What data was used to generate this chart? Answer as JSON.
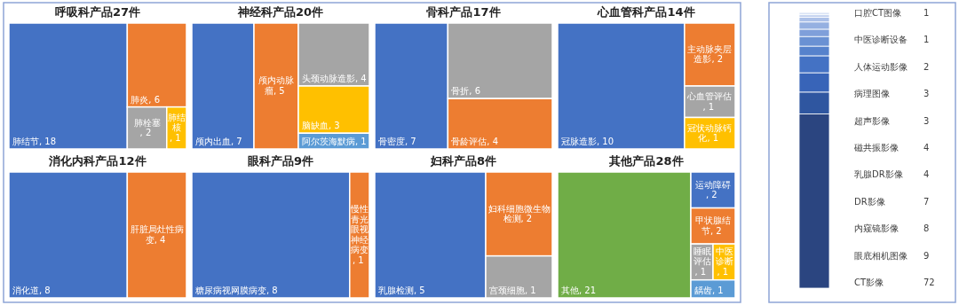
{
  "chart_data": [
    {
      "type": "other",
      "title": "呼吸科产品27件",
      "categories": [
        "肺结节",
        "肺炎",
        "肺栓塞",
        "肺结核"
      ],
      "values": [
        18,
        6,
        2,
        1
      ],
      "value_labels": [
        ", 18",
        ", 6",
        ", 2",
        ", 1"
      ],
      "colors": [
        "#4472c4",
        "#ed7d31",
        "#a5a5a5",
        "#ffc000"
      ]
    },
    {
      "type": "other",
      "title": "神经科产品20件",
      "categories": [
        "颅内出血",
        "颅内动脉瘤",
        "头颈动脉造影",
        "脑缺血",
        "阿尔茨海默病"
      ],
      "values": [
        7,
        5,
        4,
        3,
        1
      ],
      "value_labels": [
        ", 7",
        ", 5",
        ", 4",
        ", 3",
        ", 1"
      ],
      "colors": [
        "#4472c4",
        "#ed7d31",
        "#a5a5a5",
        "#ffc000",
        "#5b9bd5"
      ]
    },
    {
      "type": "other",
      "title": "骨科产品17件",
      "categories": [
        "骨密度",
        "骨折",
        "骨龄评估"
      ],
      "values": [
        7,
        6,
        4
      ],
      "value_labels": [
        ", 7",
        ", 6",
        ", 4"
      ],
      "colors": [
        "#4472c4",
        "#a5a5a5",
        "#ed7d31"
      ]
    },
    {
      "type": "other",
      "title": "心血管科产品14件",
      "categories": [
        "冠脉造影",
        "主动脉夹层造影",
        "心血管评估",
        "冠状动脉钙化"
      ],
      "values": [
        10,
        2,
        1,
        1
      ],
      "value_labels": [
        ", 10",
        ", 2",
        ", 1",
        ", 1"
      ],
      "colors": [
        "#4472c4",
        "#ed7d31",
        "#a5a5a5",
        "#ffc000"
      ]
    },
    {
      "type": "other",
      "title": "消化内科产品12件",
      "categories": [
        "消化道",
        "肝脏局灶性病变"
      ],
      "values": [
        8,
        4
      ],
      "value_labels": [
        ", 8",
        ", 4"
      ],
      "colors": [
        "#4472c4",
        "#ed7d31"
      ]
    },
    {
      "type": "other",
      "title": "眼科产品9件",
      "categories": [
        "糖尿病视网膜病变",
        "慢性青光眼视神经病变"
      ],
      "values": [
        8,
        1
      ],
      "value_labels": [
        ", 8",
        ", 1"
      ],
      "colors": [
        "#4472c4",
        "#ed7d31"
      ]
    },
    {
      "type": "other",
      "title": "妇科产品8件",
      "categories": [
        "乳腺检测",
        "妇科细胞微生物检测",
        "宫颈细胞"
      ],
      "values": [
        5,
        2,
        1
      ],
      "value_labels": [
        ", 5",
        ", 2",
        ", 1"
      ],
      "colors": [
        "#4472c4",
        "#ed7d31",
        "#a5a5a5"
      ]
    },
    {
      "type": "other",
      "title": "其他产品28件",
      "categories": [
        "其他",
        "运动障碍",
        "甲状腺结节",
        "睡眠评估",
        "中医诊断",
        "龋齿"
      ],
      "values": [
        21,
        2,
        2,
        1,
        1,
        1
      ],
      "value_labels": [
        ", 21",
        ", 2",
        ", 2",
        ", 1",
        ", 1",
        ", 1"
      ],
      "colors": [
        "#70ad47",
        "#4472c4",
        "#ed7d31",
        "#a5a5a5",
        "#ffc000",
        "#5b9bd5"
      ]
    },
    {
      "type": "other",
      "categories": [
        "口腔CT图像",
        "中医诊断设备",
        "人体运动影像",
        "病理图像",
        "超声影像",
        "磁共振影像",
        "乳腺DR影像",
        "DR影像",
        "内窥镜影像",
        "眼底相机图像",
        "CT影像"
      ],
      "values": [
        1,
        1,
        2,
        3,
        3,
        4,
        4,
        7,
        8,
        9,
        72
      ],
      "value_labels": [
        "1",
        "1",
        "2",
        "3",
        "3",
        "4",
        "4",
        "7",
        "8",
        "9",
        "72"
      ],
      "colors": [
        "#dbe4f6",
        "#c3d2ef",
        "#abc0e8",
        "#95b0e1",
        "#7f9fda",
        "#6a91d3",
        "#5682cc",
        "#4472c4",
        "#3864b8",
        "#2f56a0",
        "#2b4580"
      ]
    }
  ]
}
